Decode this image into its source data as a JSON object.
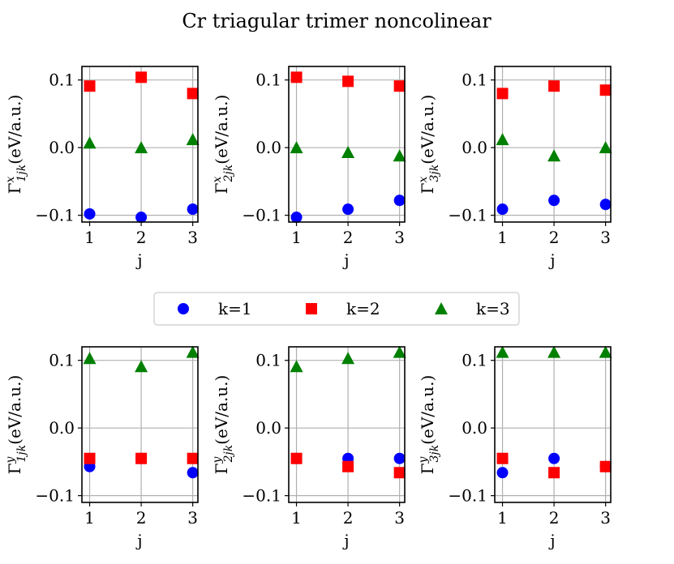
{
  "figure": {
    "title": "Cr triagular trimer noncolinear"
  },
  "legend": {
    "placement": "center-between-rows",
    "entries": [
      {
        "label": "k=1",
        "marker": "circle",
        "color": "#0000ff"
      },
      {
        "label": "k=2",
        "marker": "square",
        "color": "#ff0000"
      },
      {
        "label": "k=3",
        "marker": "triangle",
        "color": "#008000"
      }
    ]
  },
  "chart_data": [
    {
      "type": "scatter",
      "xlabel": "j",
      "ylabel": {
        "base": "Γ",
        "sup": "x",
        "sub": "1jk",
        "unit": "(eV/a.u.)"
      },
      "x": [
        1,
        2,
        3
      ],
      "xticks": [
        "1",
        "2",
        "3"
      ],
      "yticks": [
        "−0.1",
        "0.0",
        "0.1"
      ],
      "ytick_values": [
        -0.1,
        0.0,
        0.1
      ],
      "xlim": [
        0.85,
        3.1
      ],
      "ylim": [
        -0.11,
        0.12
      ],
      "grid": true,
      "series": [
        {
          "name": "k=1",
          "values": [
            -0.098,
            -0.103,
            -0.091
          ]
        },
        {
          "name": "k=2",
          "values": [
            0.091,
            0.104,
            0.08
          ]
        },
        {
          "name": "k=3",
          "values": [
            0.007,
            0.0,
            0.012
          ]
        }
      ]
    },
    {
      "type": "scatter",
      "xlabel": "j",
      "ylabel": {
        "base": "Γ",
        "sup": "x",
        "sub": "2jk",
        "unit": "(eV/a.u.)"
      },
      "x": [
        1,
        2,
        3
      ],
      "xticks": [
        "1",
        "2",
        "3"
      ],
      "yticks": [
        "−0.1",
        "0.0",
        "0.1"
      ],
      "ytick_values": [
        -0.1,
        0.0,
        0.1
      ],
      "xlim": [
        0.85,
        3.1
      ],
      "ylim": [
        -0.11,
        0.12
      ],
      "grid": true,
      "series": [
        {
          "name": "k=1",
          "values": [
            -0.103,
            -0.091,
            -0.078
          ]
        },
        {
          "name": "k=2",
          "values": [
            0.104,
            0.098,
            0.091
          ]
        },
        {
          "name": "k=3",
          "values": [
            0.0,
            -0.007,
            -0.012
          ]
        }
      ]
    },
    {
      "type": "scatter",
      "xlabel": "j",
      "ylabel": {
        "base": "Γ",
        "sup": "x",
        "sub": "3jk",
        "unit": "(eV/a.u.)"
      },
      "x": [
        1,
        2,
        3
      ],
      "xticks": [
        "1",
        "2",
        "3"
      ],
      "yticks": [
        "−0.1",
        "0.0",
        "0.1"
      ],
      "ytick_values": [
        -0.1,
        0.0,
        0.1
      ],
      "xlim": [
        0.85,
        3.1
      ],
      "ylim": [
        -0.11,
        0.12
      ],
      "grid": true,
      "series": [
        {
          "name": "k=1",
          "values": [
            -0.091,
            -0.078,
            -0.084
          ]
        },
        {
          "name": "k=2",
          "values": [
            0.08,
            0.091,
            0.085
          ]
        },
        {
          "name": "k=3",
          "values": [
            0.012,
            -0.012,
            0.0
          ]
        }
      ]
    },
    {
      "type": "scatter",
      "xlabel": "j",
      "ylabel": {
        "base": "Γ",
        "sup": "y",
        "sub": "1jk",
        "unit": "(eV/a.u.)"
      },
      "x": [
        1,
        2,
        3
      ],
      "xticks": [
        "1",
        "2",
        "3"
      ],
      "yticks": [
        "−0.1",
        "0.0",
        "0.1"
      ],
      "ytick_values": [
        -0.1,
        0.0,
        0.1
      ],
      "xlim": [
        0.85,
        3.1
      ],
      "ylim": [
        -0.11,
        0.12
      ],
      "grid": true,
      "series": [
        {
          "name": "k=1",
          "values": [
            -0.057,
            -0.045,
            -0.066
          ]
        },
        {
          "name": "k=2",
          "values": [
            -0.045,
            -0.045,
            -0.045
          ]
        },
        {
          "name": "k=3",
          "values": [
            0.103,
            0.091,
            0.112
          ]
        }
      ]
    },
    {
      "type": "scatter",
      "xlabel": "j",
      "ylabel": {
        "base": "Γ",
        "sup": "y",
        "sub": "2jk",
        "unit": "(eV/a.u.)"
      },
      "x": [
        1,
        2,
        3
      ],
      "xticks": [
        "1",
        "2",
        "3"
      ],
      "yticks": [
        "−0.1",
        "0.0",
        "0.1"
      ],
      "ytick_values": [
        -0.1,
        0.0,
        0.1
      ],
      "xlim": [
        0.85,
        3.1
      ],
      "ylim": [
        -0.11,
        0.12
      ],
      "grid": true,
      "series": [
        {
          "name": "k=1",
          "values": [
            -0.045,
            -0.045,
            -0.045
          ]
        },
        {
          "name": "k=2",
          "values": [
            -0.045,
            -0.057,
            -0.066
          ]
        },
        {
          "name": "k=3",
          "values": [
            0.091,
            0.103,
            0.112
          ]
        }
      ]
    },
    {
      "type": "scatter",
      "xlabel": "j",
      "ylabel": {
        "base": "Γ",
        "sup": "y",
        "sub": "3jk",
        "unit": "(eV/a.u.)"
      },
      "x": [
        1,
        2,
        3
      ],
      "xticks": [
        "1",
        "2",
        "3"
      ],
      "yticks": [
        "−0.1",
        "0.0",
        "0.1"
      ],
      "ytick_values": [
        -0.1,
        0.0,
        0.1
      ],
      "xlim": [
        0.85,
        3.1
      ],
      "ylim": [
        -0.11,
        0.12
      ],
      "grid": true,
      "series": [
        {
          "name": "k=1",
          "values": [
            -0.066,
            -0.045,
            -0.057
          ]
        },
        {
          "name": "k=2",
          "values": [
            -0.045,
            -0.066,
            -0.057
          ]
        },
        {
          "name": "k=3",
          "values": [
            0.112,
            0.112,
            0.112
          ]
        }
      ]
    }
  ]
}
